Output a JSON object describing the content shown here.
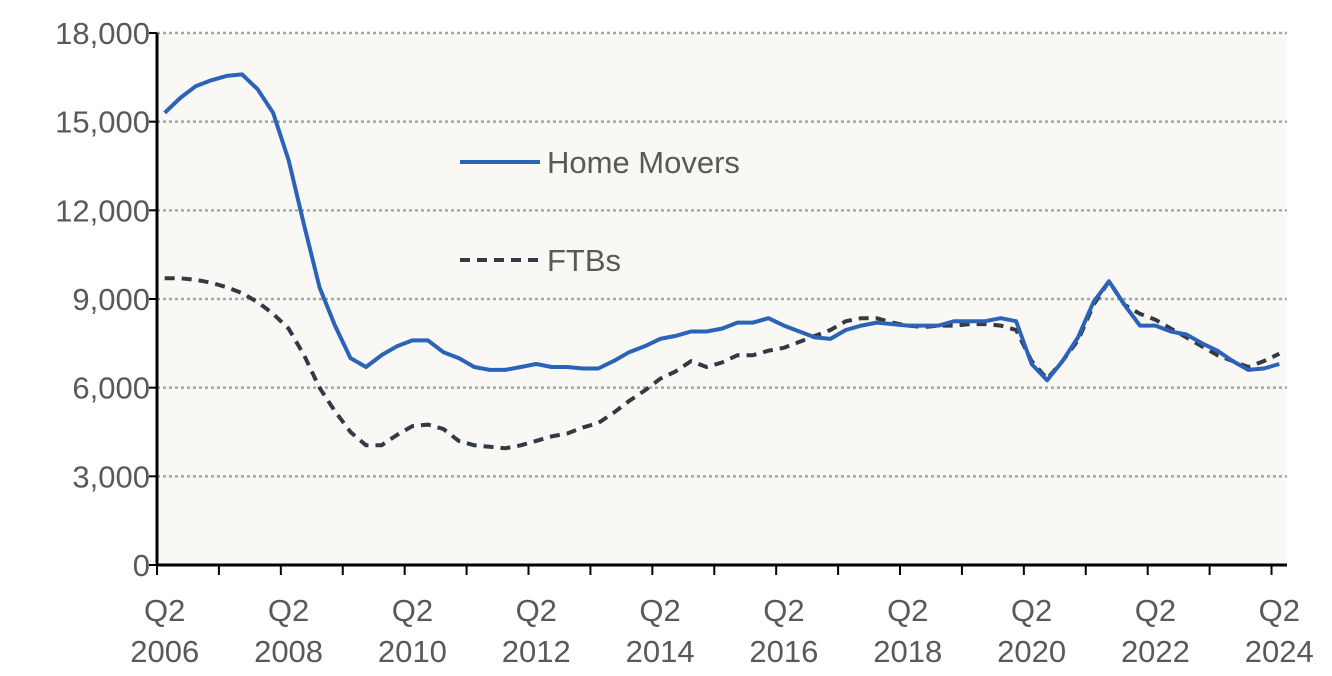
{
  "chart_data": {
    "type": "line",
    "title": "",
    "xlabel": "",
    "ylabel": "",
    "ylim": [
      0,
      18000
    ],
    "yticks": [
      0,
      3000,
      6000,
      9000,
      12000,
      15000,
      18000
    ],
    "ytick_labels": [
      "0",
      "3,000",
      "6,000",
      "9,000",
      "12,000",
      "15,000",
      "18,000"
    ],
    "grid": "horizontal dotted",
    "legend_position": "upper-center",
    "x_start": "Q2 2006",
    "x_end": "Q2 2024",
    "x_frequency": "quarterly",
    "xtick_labels": [
      [
        "Q2",
        "2006"
      ],
      [
        "Q2",
        "2008"
      ],
      [
        "Q2",
        "2010"
      ],
      [
        "Q2",
        "2012"
      ],
      [
        "Q2",
        "2014"
      ],
      [
        "Q2",
        "2016"
      ],
      [
        "Q2",
        "2018"
      ],
      [
        "Q2",
        "2020"
      ],
      [
        "Q2",
        "2022"
      ],
      [
        "Q2",
        "2024"
      ]
    ],
    "series": [
      {
        "name": "Home Movers",
        "color": "#2B63B8",
        "style": "solid",
        "values": [
          15300,
          15800,
          16200,
          16400,
          16550,
          16600,
          16100,
          15300,
          13700,
          11500,
          9400,
          8100,
          7000,
          6700,
          7100,
          7400,
          7600,
          7600,
          7200,
          7000,
          6700,
          6600,
          6600,
          6700,
          6800,
          6700,
          6700,
          6650,
          6650,
          6900,
          7200,
          7400,
          7650,
          7750,
          7900,
          7900,
          8000,
          8200,
          8200,
          8350,
          8100,
          7900,
          7700,
          7650,
          7950,
          8100,
          8200,
          8150,
          8100,
          8100,
          8100,
          8250,
          8250,
          8250,
          8350,
          8250,
          6800,
          6250,
          6900,
          7700,
          8900,
          9600,
          8800,
          8100,
          8100,
          7900,
          7800,
          7500,
          7250,
          6900,
          6600,
          6650,
          6800
        ]
      },
      {
        "name": "FTBs",
        "color": "#333A44",
        "style": "dashed",
        "values": [
          9700,
          9700,
          9650,
          9550,
          9400,
          9200,
          8900,
          8500,
          8000,
          7100,
          6000,
          5200,
          4500,
          4050,
          4050,
          4400,
          4700,
          4750,
          4600,
          4200,
          4050,
          4000,
          3950,
          4050,
          4200,
          4350,
          4450,
          4650,
          4800,
          5150,
          5550,
          5900,
          6300,
          6550,
          6900,
          6700,
          6850,
          7100,
          7100,
          7250,
          7350,
          7550,
          7750,
          7950,
          8250,
          8350,
          8350,
          8200,
          8100,
          8050,
          8100,
          8100,
          8150,
          8150,
          8100,
          7950,
          6900,
          6300,
          6900,
          7600,
          8800,
          9600,
          8800,
          8500,
          8300,
          8000,
          7700,
          7400,
          7100,
          6900,
          6700,
          6900,
          7150
        ]
      }
    ]
  }
}
